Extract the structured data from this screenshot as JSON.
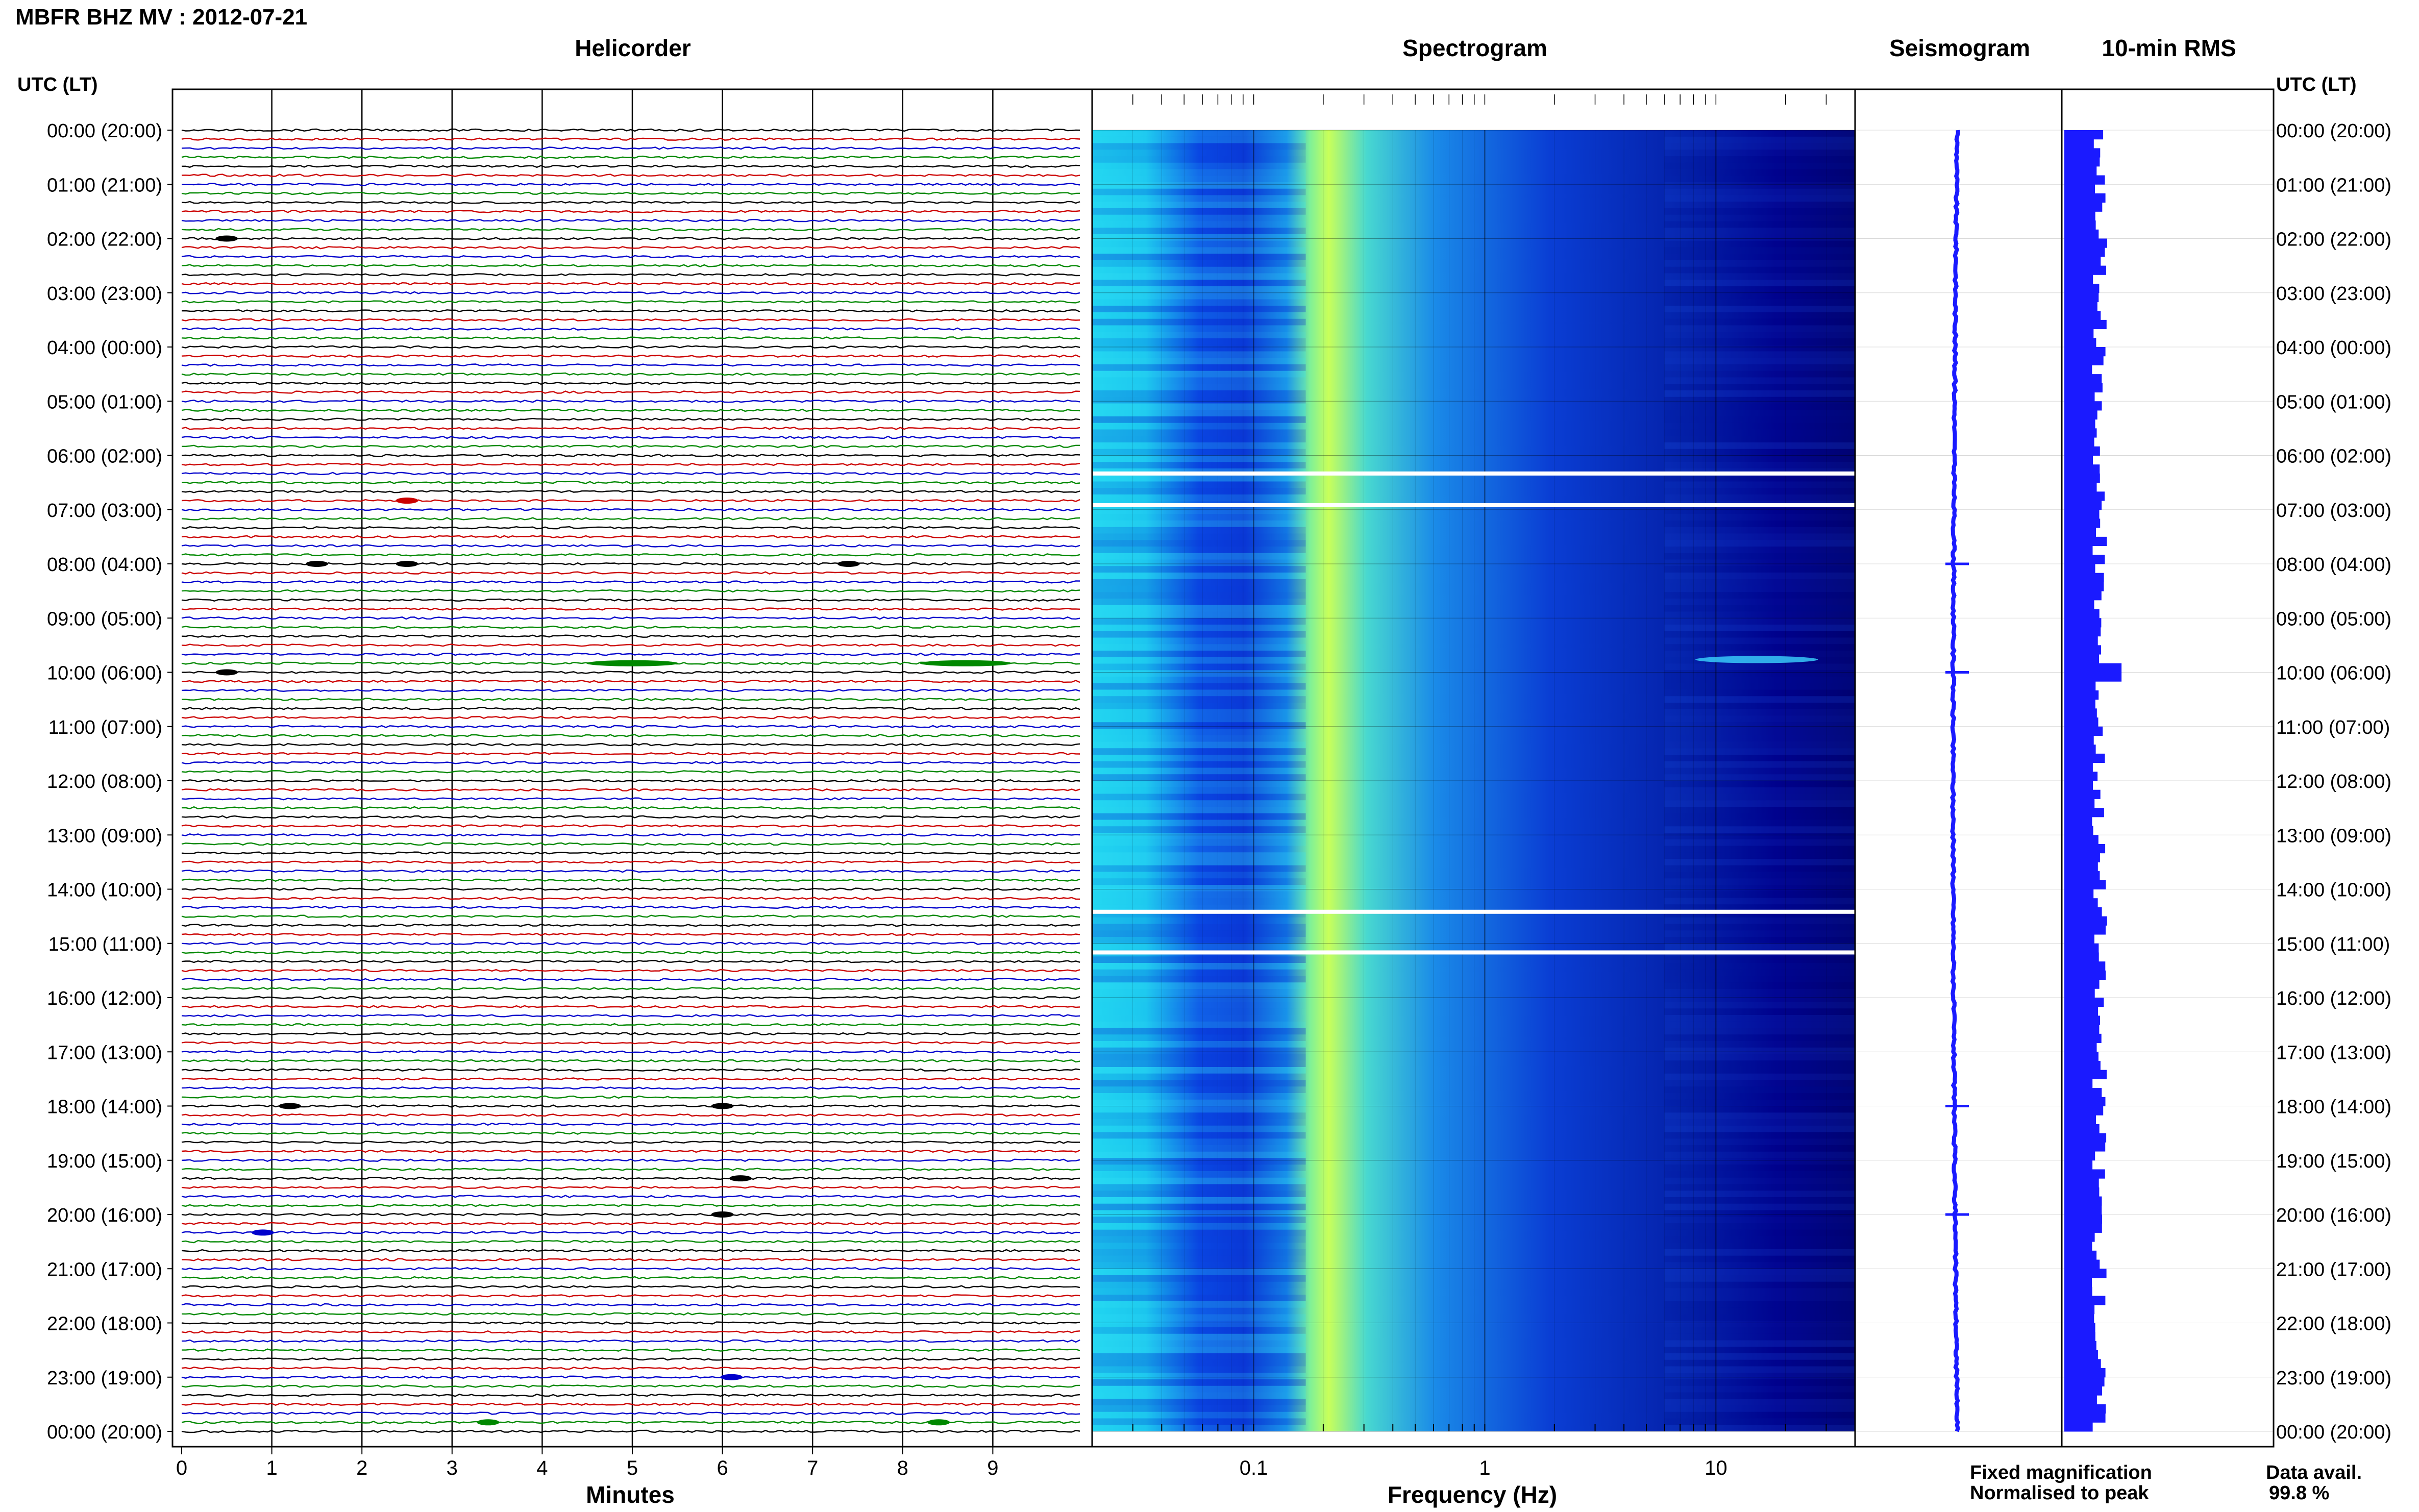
{
  "page_title": "MBFR BHZ MV : 2012-07-21",
  "left_axis_header": "UTC (LT)",
  "right_axis_header": "UTC (LT)",
  "time_labels": [
    "00:00 (20:00)",
    "01:00 (21:00)",
    "02:00 (22:00)",
    "03:00 (23:00)",
    "04:00 (00:00)",
    "05:00 (01:00)",
    "06:00 (02:00)",
    "07:00 (03:00)",
    "08:00 (04:00)",
    "09:00 (05:00)",
    "10:00 (06:00)",
    "11:00 (07:00)",
    "12:00 (08:00)",
    "13:00 (09:00)",
    "14:00 (10:00)",
    "15:00 (11:00)",
    "16:00 (12:00)",
    "17:00 (13:00)",
    "18:00 (14:00)",
    "19:00 (15:00)",
    "20:00 (16:00)",
    "21:00 (17:00)",
    "22:00 (18:00)",
    "23:00 (19:00)",
    "00:00 (20:00)"
  ],
  "panels": {
    "helicorder": {
      "title": "Helicorder",
      "xlabel": "Minutes",
      "x_ticks": [
        "0",
        "1",
        "2",
        "3",
        "4",
        "5",
        "6",
        "7",
        "8",
        "9"
      ]
    },
    "spectrogram": {
      "title": "Spectrogram",
      "xlabel": "Frequency (Hz)",
      "x_ticks": [
        "0.1",
        "1",
        "10"
      ]
    },
    "seismogram": {
      "title": "Seismogram"
    },
    "rms": {
      "title": "10-min RMS"
    }
  },
  "legend": {
    "fixed": "Fixed magnification",
    "normalised": "Normalised to peak",
    "fixed_color": "#1a1aff",
    "normalised_color": "#ff1a1a"
  },
  "data_availability": {
    "label": "Data avail.",
    "value": "99.8 %"
  },
  "colors": {
    "trace_cycle": [
      "#000000",
      "#cc0000",
      "#0000cc",
      "#008800"
    ],
    "spectrogram_low": "#00006e",
    "spectrogram_high": "#c8ff5a",
    "seismogram": "#1a1aff",
    "rms": "#1a1aff",
    "data_gap": "#ffffff"
  },
  "chart_data": [
    {
      "type": "line",
      "name": "helicorder",
      "title": "Helicorder",
      "xlabel": "Minutes",
      "xlim": [
        0,
        10
      ],
      "rows_per_hour": 6,
      "traces_minutes": 10,
      "events": [
        {
          "time_utc": "02:00",
          "minute": 0.5
        },
        {
          "time_utc": "06:50",
          "minute": 2.5
        },
        {
          "time_utc": "08:00",
          "minute": 1.5
        },
        {
          "time_utc": "08:00",
          "minute": 2.5
        },
        {
          "time_utc": "08:00",
          "minute": 7.4
        },
        {
          "time_utc": "09:50",
          "minute": 5.0
        },
        {
          "time_utc": "09:50",
          "minute": 8.7
        },
        {
          "time_utc": "10:00",
          "minute": 0.5
        },
        {
          "time_utc": "18:00",
          "minute": 1.2
        },
        {
          "time_utc": "18:00",
          "minute": 6.0
        },
        {
          "time_utc": "19:20",
          "minute": 6.2
        },
        {
          "time_utc": "20:00",
          "minute": 6.0
        },
        {
          "time_utc": "20:20",
          "minute": 0.9
        },
        {
          "time_utc": "23:00",
          "minute": 6.1
        },
        {
          "time_utc": "23:50",
          "minute": 3.4
        },
        {
          "time_utc": "23:50",
          "minute": 8.4
        }
      ]
    },
    {
      "type": "heatmap",
      "name": "spectrogram",
      "title": "Spectrogram",
      "xlabel": "Frequency (Hz)",
      "xscale": "log",
      "xlim": [
        0.02,
        40
      ],
      "peak_band_hz": [
        0.2,
        0.3
      ],
      "gaps_utc": [
        "06:20",
        "06:55",
        "14:25",
        "15:10"
      ],
      "high_freq_event_utc": "10:00"
    },
    {
      "type": "line",
      "name": "seismogram",
      "title": "Seismogram",
      "spikes_utc": [
        "08:00",
        "10:00",
        "18:00",
        "20:00"
      ]
    },
    {
      "type": "bar",
      "name": "10-min RMS",
      "title": "10-min RMS",
      "peak_utc": "09:50",
      "relative_level_typical": 0.3,
      "relative_level_peak": 0.5
    }
  ]
}
